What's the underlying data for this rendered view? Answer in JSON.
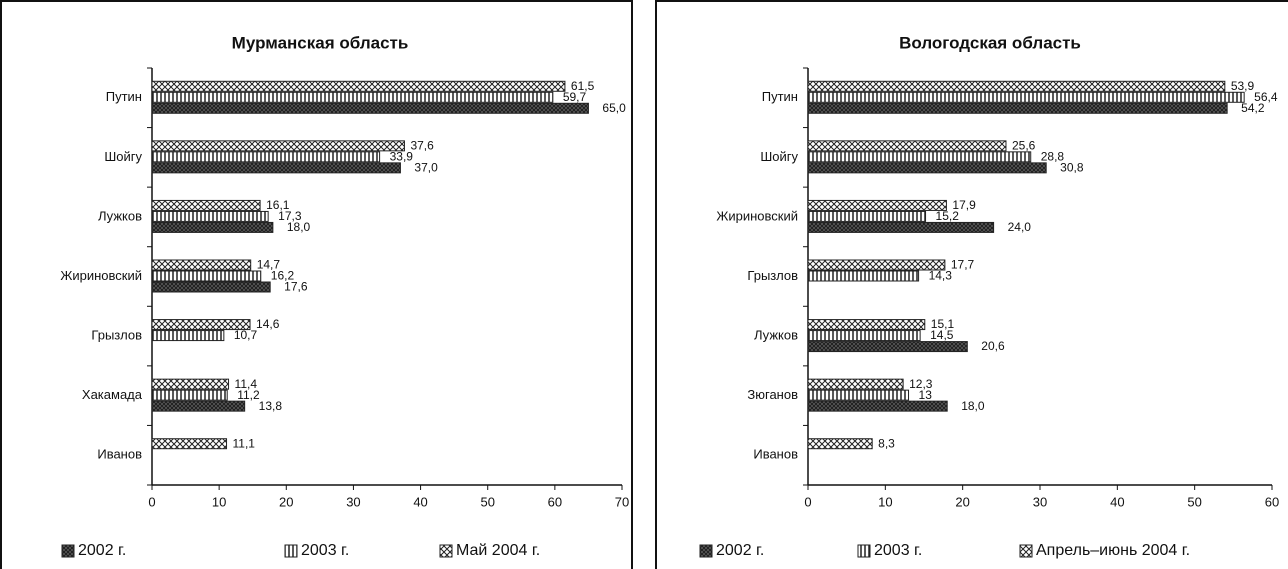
{
  "chart_data": [
    {
      "type": "bar",
      "orientation": "horizontal",
      "title": "Мурманская область",
      "categories": [
        "Путин",
        "Шойгу",
        "Лужков",
        "Жириновский",
        "Грызлов",
        "Хакамада",
        "Иванов"
      ],
      "series": [
        {
          "name": "2002 г.",
          "color": "#222222",
          "values": [
            65.0,
            37.0,
            18.0,
            17.6,
            null,
            13.8,
            null
          ],
          "value_labels": [
            "65,0",
            "37,0",
            "18,0",
            "17,6",
            null,
            "13,8",
            null
          ]
        },
        {
          "name": "2003 г.",
          "color": "#222222",
          "values": [
            59.7,
            33.9,
            17.3,
            16.2,
            10.7,
            11.2,
            null
          ],
          "value_labels": [
            "59,7",
            "33,9",
            "17,3",
            "16,2",
            "10,7",
            "11,2",
            null
          ]
        },
        {
          "name": "Май 2004 г.",
          "color": "#222222",
          "values": [
            61.5,
            37.6,
            16.1,
            14.7,
            14.6,
            11.4,
            11.1
          ],
          "value_labels": [
            "61,5",
            "37,6",
            "16,1",
            "14,7",
            "14,6",
            "11,4",
            "11,1"
          ]
        }
      ],
      "xlim": [
        0,
        70
      ],
      "xticks": [
        0,
        10,
        20,
        30,
        40,
        50,
        60,
        70
      ],
      "legend": "bottom"
    },
    {
      "type": "bar",
      "orientation": "horizontal",
      "title": "Вологодская область",
      "categories": [
        "Путин",
        "Шойгу",
        "Жириновский",
        "Грызлов",
        "Лужков",
        "Зюганов",
        "Иванов"
      ],
      "series": [
        {
          "name": "2002 г.",
          "color": "#222222",
          "values": [
            54.2,
            30.8,
            24.0,
            null,
            20.6,
            18.0,
            null
          ],
          "value_labels": [
            "54,2",
            "30,8",
            "24,0",
            null,
            "20,6",
            "18,0",
            null
          ]
        },
        {
          "name": "2003 г.",
          "color": "#222222",
          "values": [
            56.4,
            28.8,
            15.2,
            14.3,
            14.5,
            13,
            null
          ],
          "value_labels": [
            "56,4",
            "28,8",
            "15,2",
            "14,3",
            "14,5",
            "13",
            null
          ]
        },
        {
          "name": "Апрель–июнь 2004 г.",
          "color": "#222222",
          "values": [
            53.9,
            25.6,
            17.9,
            17.7,
            15.1,
            12.3,
            8.3
          ],
          "value_labels": [
            "53,9",
            "25,6",
            "17,9",
            "17,7",
            "15,1",
            "12,3",
            "8,3"
          ]
        }
      ],
      "xlim": [
        0,
        60
      ],
      "xticks": [
        0,
        10,
        20,
        30,
        40,
        50,
        60
      ],
      "legend": "bottom"
    }
  ]
}
